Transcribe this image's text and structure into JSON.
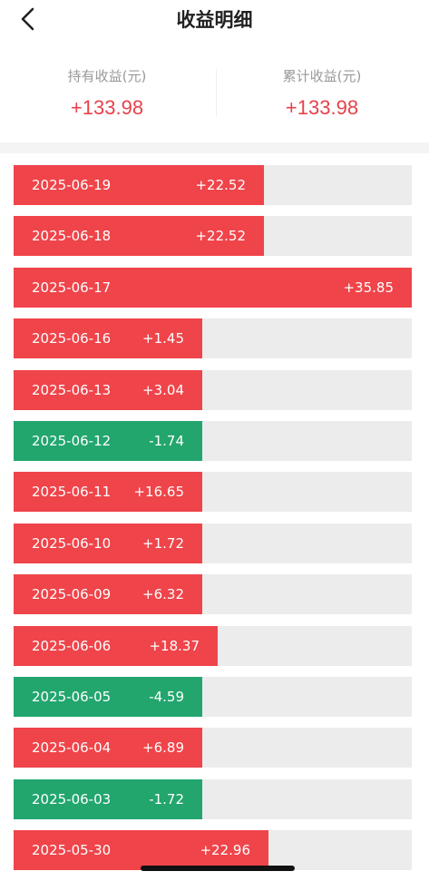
{
  "header": {
    "title": "收益明细",
    "back_icon": "chevron-left-icon"
  },
  "summary": {
    "holding_label": "持有收益(元)",
    "holding_value": "+133.98",
    "total_label": "累计收益(元)",
    "total_value": "+133.98"
  },
  "colors": {
    "positive": "#ef444a",
    "negative": "#22a66e",
    "track": "#ececec"
  },
  "max_abs_value": 35.85,
  "rows": [
    {
      "date": "2025-06-19",
      "amount": "+22.52",
      "value": 22.52
    },
    {
      "date": "2025-06-18",
      "amount": "+22.52",
      "value": 22.52
    },
    {
      "date": "2025-06-17",
      "amount": "+35.85",
      "value": 35.85
    },
    {
      "date": "2025-06-16",
      "amount": "+1.45",
      "value": 1.45
    },
    {
      "date": "2025-06-13",
      "amount": "+3.04",
      "value": 3.04
    },
    {
      "date": "2025-06-12",
      "amount": "-1.74",
      "value": -1.74
    },
    {
      "date": "2025-06-11",
      "amount": "+16.65",
      "value": 16.65
    },
    {
      "date": "2025-06-10",
      "amount": "+1.72",
      "value": 1.72
    },
    {
      "date": "2025-06-09",
      "amount": "+6.32",
      "value": 6.32
    },
    {
      "date": "2025-06-06",
      "amount": "+18.37",
      "value": 18.37
    },
    {
      "date": "2025-06-05",
      "amount": "-4.59",
      "value": -4.59
    },
    {
      "date": "2025-06-04",
      "amount": "+6.89",
      "value": 6.89
    },
    {
      "date": "2025-06-03",
      "amount": "-1.72",
      "value": -1.72
    },
    {
      "date": "2025-05-30",
      "amount": "+22.96",
      "value": 22.96
    }
  ]
}
